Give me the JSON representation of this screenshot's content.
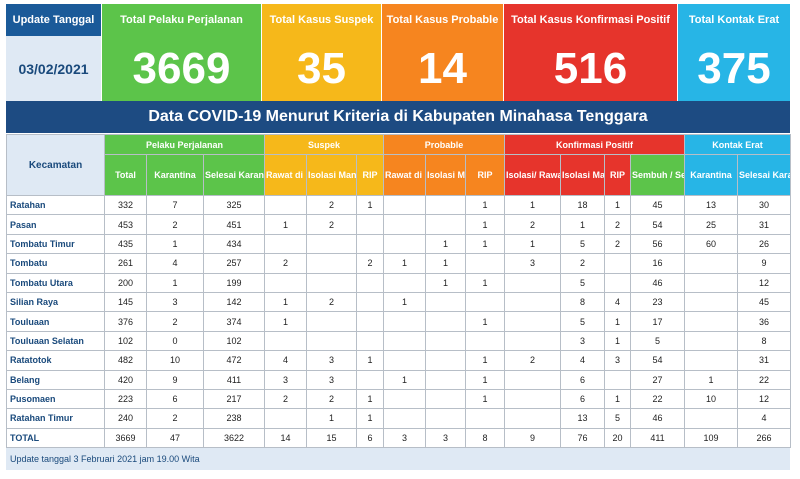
{
  "summary": {
    "date_label": "Update Tanggal",
    "date_value": "03/02/2021",
    "cards": [
      {
        "label": "Total Pelaku Perjalanan",
        "value": "3669",
        "color": "#5cc44a"
      },
      {
        "label": "Total Kasus Suspek",
        "value": "35",
        "color": "#f6b81a"
      },
      {
        "label": "Total Kasus Probable",
        "value": "14",
        "color": "#f6851f"
      },
      {
        "label": "Total Kasus Konfirmasi Positif",
        "value": "516",
        "color": "#e6342c"
      },
      {
        "label": "Total Kontak Erat",
        "value": "375",
        "color": "#27b5e6"
      }
    ]
  },
  "banner": "Data COVID-19 Menurut Kriteria di Kabupaten Minahasa Tenggara",
  "table": {
    "kecamatan_header": "Kecamatan",
    "groups": [
      {
        "label": "Pelaku Perjalanan",
        "color": "#5cc44a",
        "light": "#b8e6ae"
      },
      {
        "label": "Suspek",
        "color": "#f6b81a",
        "light": "#f9dd8c"
      },
      {
        "label": "Probable",
        "color": "#f6851f",
        "light": "#f9c48e"
      },
      {
        "label": "Konfirmasi Positif",
        "color": "#e6342c",
        "light": "#f1928c"
      },
      {
        "label": "Kontak Erat",
        "color": "#27b5e6",
        "light": "#92d8f1"
      }
    ],
    "subheaders": [
      "Total",
      "Karantina",
      "Selesai Karantina",
      "Rawat di RS",
      "Isolasi Mandiri",
      "RIP",
      "Rawat di RS",
      "Isolasi Mandiri",
      "RIP",
      "Isolasi/ Rawat Di RS",
      "Isolasi Mandiri",
      "RIP",
      "Sembuh / Selesai Isolasi",
      "Karantina",
      "Selesai Karantina"
    ],
    "rows": [
      {
        "name": "Ratahan",
        "cells": [
          "332",
          "7",
          "325",
          "",
          "2",
          "1",
          "",
          "",
          "1",
          "1",
          "18",
          "1",
          "45",
          "13",
          "30"
        ]
      },
      {
        "name": "Pasan",
        "cells": [
          "453",
          "2",
          "451",
          "1",
          "2",
          "",
          "",
          "",
          "1",
          "2",
          "1",
          "2",
          "54",
          "25",
          "31"
        ]
      },
      {
        "name": "Tombatu Timur",
        "cells": [
          "435",
          "1",
          "434",
          "",
          "",
          "",
          "",
          "1",
          "1",
          "1",
          "5",
          "2",
          "56",
          "60",
          "26"
        ]
      },
      {
        "name": "Tombatu",
        "cells": [
          "261",
          "4",
          "257",
          "2",
          "",
          "2",
          "1",
          "1",
          "",
          "3",
          "2",
          "",
          "16",
          "",
          "9"
        ]
      },
      {
        "name": "Tombatu Utara",
        "cells": [
          "200",
          "1",
          "199",
          "",
          "",
          "",
          "",
          "1",
          "1",
          "",
          "5",
          "",
          "46",
          "",
          "12"
        ]
      },
      {
        "name": "Silian Raya",
        "cells": [
          "145",
          "3",
          "142",
          "1",
          "2",
          "",
          "1",
          "",
          "",
          "",
          "8",
          "4",
          "23",
          "",
          "45"
        ]
      },
      {
        "name": "Touluaan",
        "cells": [
          "376",
          "2",
          "374",
          "1",
          "",
          "",
          "",
          "",
          "1",
          "",
          "5",
          "1",
          "17",
          "",
          "36"
        ]
      },
      {
        "name": "Touluaan Selatan",
        "cells": [
          "102",
          "0",
          "102",
          "",
          "",
          "",
          "",
          "",
          "",
          "",
          "3",
          "1",
          "5",
          "",
          "8"
        ]
      },
      {
        "name": "Ratatotok",
        "cells": [
          "482",
          "10",
          "472",
          "4",
          "3",
          "1",
          "",
          "",
          "1",
          "2",
          "4",
          "3",
          "54",
          "",
          "31"
        ]
      },
      {
        "name": "Belang",
        "cells": [
          "420",
          "9",
          "411",
          "3",
          "3",
          "",
          "1",
          "",
          "1",
          "",
          "6",
          "",
          "27",
          "1",
          "22"
        ]
      },
      {
        "name": "Pusomaen",
        "cells": [
          "223",
          "6",
          "217",
          "2",
          "2",
          "1",
          "",
          "",
          "1",
          "",
          "6",
          "1",
          "22",
          "10",
          "12"
        ]
      },
      {
        "name": "Ratahan Timur",
        "cells": [
          "240",
          "2",
          "238",
          "",
          "1",
          "1",
          "",
          "",
          "",
          "",
          "13",
          "5",
          "46",
          "",
          "4"
        ]
      },
      {
        "name": "TOTAL",
        "cells": [
          "3669",
          "47",
          "3622",
          "14",
          "15",
          "6",
          "3",
          "3",
          "8",
          "9",
          "76",
          "20",
          "411",
          "109",
          "266"
        ]
      }
    ]
  },
  "footer": "Update tanggal 3 Februari 2021 jam 19.00 Wita"
}
